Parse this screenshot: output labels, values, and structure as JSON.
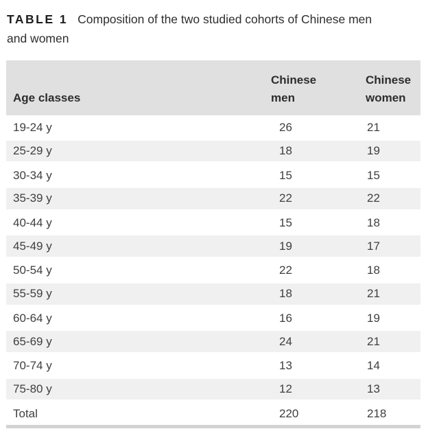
{
  "caption": {
    "label": "TABLE 1",
    "text": "Composition of the two studied cohorts of Chinese men and women"
  },
  "table": {
    "columns": [
      "Age classes",
      "Chinese men",
      "Chinese women"
    ],
    "rows": [
      {
        "age": "19-24 y",
        "men": "26",
        "women": "21"
      },
      {
        "age": "25-29 y",
        "men": "18",
        "women": "19"
      },
      {
        "age": "30-34 y",
        "men": "15",
        "women": "15"
      },
      {
        "age": "35-39 y",
        "men": "22",
        "women": "22"
      },
      {
        "age": "40-44 y",
        "men": "15",
        "women": "18"
      },
      {
        "age": "45-49 y",
        "men": "19",
        "women": "17"
      },
      {
        "age": "50-54 y",
        "men": "22",
        "women": "18"
      },
      {
        "age": "55-59 y",
        "men": "18",
        "women": "21"
      },
      {
        "age": "60-64 y",
        "men": "16",
        "women": "19"
      },
      {
        "age": "65-69 y",
        "men": "24",
        "women": "21"
      },
      {
        "age": "70-74 y",
        "men": "13",
        "women": "14"
      },
      {
        "age": "75-80 y",
        "men": "12",
        "women": "13"
      }
    ],
    "total_row": {
      "label": "Total",
      "men": "220",
      "women": "218"
    }
  },
  "colors": {
    "header_bg": "#dfe0df",
    "shaded_row_bg": "#eff0ef",
    "bottom_rule": "#d3d3d3",
    "text": "#3e3e3e"
  }
}
